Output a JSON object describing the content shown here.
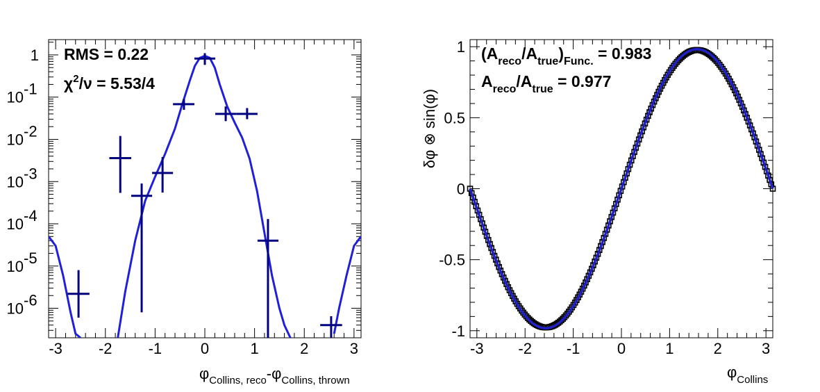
{
  "chart_data": [
    {
      "type": "line",
      "description": "Histogram with error bars and fitted curve, log-scale y axis",
      "xlabel": "φ_{Collins, reco} - φ_{Collins, thrown}",
      "xlabel_main1": "φ",
      "xlabel_sub1": "Collins, reco",
      "xlabel_main2": "-φ",
      "xlabel_sub2": "Collins, thrown",
      "ylabel": "",
      "xlim": [
        -3.14159,
        3.14159
      ],
      "ylim": [
        2e-07,
        2.3
      ],
      "log_y": true,
      "x_ticks": [
        -3,
        -2,
        -1,
        0,
        1,
        2,
        3
      ],
      "x_tick_labels": [
        "-3",
        "-2",
        "-1",
        "0",
        "1",
        "2",
        "3"
      ],
      "y_ticks": [
        1,
        0.1,
        0.01,
        0.001,
        0.0001,
        1e-05,
        1e-06
      ],
      "y_tick_labels": [
        {
          "base": "1",
          "exp": ""
        },
        {
          "base": "10",
          "exp": "-1"
        },
        {
          "base": "10",
          "exp": "-2"
        },
        {
          "base": "10",
          "exp": "-3"
        },
        {
          "base": "10",
          "exp": "-4"
        },
        {
          "base": "10",
          "exp": "-5"
        },
        {
          "base": "10",
          "exp": "-6"
        }
      ],
      "stats": {
        "rms_text": "RMS = 0.22",
        "chi_sym": "χ",
        "chi_exp": "2",
        "chi_rest": "/ν = 5.53/4"
      },
      "series": [
        {
          "kind": "histogram",
          "color": "#000080",
          "points": [
            {
              "x": -2.54,
              "xlo": -2.76,
              "xhi": -2.32,
              "y": 2.2e-06,
              "ylo": 6e-07,
              "yhi": 8e-06
            },
            {
              "x": -1.7,
              "xlo": -1.92,
              "xhi": -1.48,
              "y": 0.0036,
              "ylo": 0.00054,
              "yhi": 0.012
            },
            {
              "x": -1.27,
              "xlo": -1.48,
              "xhi": -1.06,
              "y": 0.00046,
              "ylo": 8e-07,
              "yhi": 0.0009
            },
            {
              "x": -0.85,
              "xlo": -1.06,
              "xhi": -0.64,
              "y": 0.0016,
              "ylo": 0.00055,
              "yhi": 0.0038
            },
            {
              "x": -0.42,
              "xlo": -0.64,
              "xhi": -0.21,
              "y": 0.068,
              "ylo": 0.05,
              "yhi": 0.09
            },
            {
              "x": 0.0,
              "xlo": -0.21,
              "xhi": 0.21,
              "y": 0.82,
              "ylo": 0.58,
              "yhi": 1.1
            },
            {
              "x": 0.42,
              "xlo": 0.21,
              "xhi": 0.64,
              "y": 0.04,
              "ylo": 0.027,
              "yhi": 0.06
            },
            {
              "x": 0.85,
              "xlo": 0.64,
              "xhi": 1.06,
              "y": 0.04,
              "ylo": 0.03,
              "yhi": 0.055
            },
            {
              "x": 1.27,
              "xlo": 1.06,
              "xhi": 1.48,
              "y": 4e-05,
              "ylo": 2e-07,
              "yhi": 0.00013
            },
            {
              "x": 2.54,
              "xlo": 2.32,
              "xhi": 2.76,
              "y": 4e-07,
              "ylo": 2e-07,
              "yhi": 6.5e-07
            }
          ]
        },
        {
          "kind": "fit",
          "color": "#1f1fdc",
          "segments": [
            {
              "x": [
                -3.14,
                -3.0,
                -2.85,
                -2.7,
                -2.6,
                -2.5
              ],
              "y": [
                5e-05,
                3e-05,
                6e-06,
                8e-07,
                2.5e-07,
                2e-07
              ]
            },
            {
              "x": [
                -1.75,
                -1.6,
                -1.4,
                -1.2,
                -1.0,
                -0.8,
                -0.6,
                -0.45,
                -0.3,
                -0.2,
                -0.1,
                0.0,
                0.1,
                0.2,
                0.3,
                0.45,
                0.6,
                0.75,
                0.9,
                1.05,
                1.2,
                1.35,
                1.5,
                1.6,
                1.72
              ],
              "y": [
                2e-07,
                2.5e-06,
                4e-05,
                0.00035,
                0.0013,
                0.0045,
                0.018,
                0.07,
                0.25,
                0.55,
                0.85,
                0.95,
                0.85,
                0.5,
                0.2,
                0.06,
                0.025,
                0.011,
                0.0035,
                0.0006,
                6e-05,
                6e-06,
                1e-06,
                4e-07,
                2e-07
              ]
            },
            {
              "x": [
                2.6,
                2.7,
                2.85,
                3.0,
                3.14
              ],
              "y": [
                2.5e-07,
                1e-06,
                6e-06,
                3e-05,
                5e-05
              ]
            }
          ]
        }
      ]
    },
    {
      "type": "scatter",
      "description": "δφ ⊗ sin(φ) vs φ_Collins with reco and function overlay",
      "xlabel_main": "φ",
      "xlabel_sub": "Collins",
      "ylabel": "δφ ⊗ sin(φ)",
      "xlim": [
        -3.14159,
        3.14159
      ],
      "ylim": [
        -1.05,
        1.05
      ],
      "x_ticks": [
        -3,
        -2,
        -1,
        0,
        1,
        2,
        3
      ],
      "x_tick_labels": [
        "-3",
        "-2",
        "-1",
        "0",
        "1",
        "2",
        "3"
      ],
      "y_ticks": [
        1,
        0.5,
        0,
        -0.5,
        -1
      ],
      "y_tick_labels": [
        "1",
        "0.5",
        "0",
        "-0.5",
        "-1"
      ],
      "stats": {
        "line1_open": "(A",
        "line1_sub1": "reco",
        "line1_mid": "/A",
        "line1_sub2": "true",
        "line1_close": ")",
        "line1_sub3": "Func.",
        "line1_value": " = 0.983",
        "line2_a": "A",
        "line2_sub1": "reco",
        "line2_mid": "/A",
        "line2_sub2": "true",
        "line2_value": " = 0.977"
      },
      "series": [
        {
          "name": "",
          "kind": "markers",
          "color": "#000000",
          "function": "0.977*sin(x)",
          "n_points": 200
        },
        {
          "name": "",
          "kind": "curve",
          "color": "#2020c8",
          "function": "0.983*sin(x)"
        }
      ]
    }
  ]
}
